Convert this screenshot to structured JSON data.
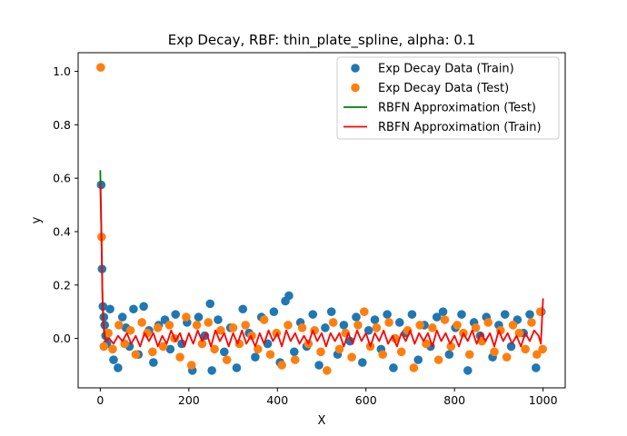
{
  "chart_data": {
    "type": "scatter",
    "title": "Exp Decay, RBF: thin_plate_spline, alpha: 0.1",
    "xlabel": "X",
    "ylabel": "y",
    "xlim": [
      -50,
      1050
    ],
    "ylim": [
      -0.185,
      1.07
    ],
    "xticks": [
      0,
      200,
      400,
      600,
      800,
      1000
    ],
    "yticks": [
      0.0,
      0.2,
      0.4,
      0.6,
      0.8,
      1.0
    ],
    "xtick_labels": [
      "0",
      "200",
      "400",
      "600",
      "800",
      "1000"
    ],
    "ytick_labels": [
      "0.0",
      "0.2",
      "0.4",
      "0.6",
      "0.8",
      "1.0"
    ],
    "legend_position": "top-right",
    "series": [
      {
        "name": "Exp Decay Data (Train)",
        "kind": "scatter",
        "color": "#1f77b4",
        "points": [
          [
            2,
            0.575
          ],
          [
            4,
            0.26
          ],
          [
            6,
            0.12
          ],
          [
            8,
            0.08
          ],
          [
            10,
            0.05
          ],
          [
            12,
            0.01
          ],
          [
            15,
            -0.02
          ],
          [
            22,
            0.11
          ],
          [
            30,
            -0.08
          ],
          [
            40,
            -0.11
          ],
          [
            50,
            0.08
          ],
          [
            58,
            0.04
          ],
          [
            66,
            -0.03
          ],
          [
            75,
            0.11
          ],
          [
            86,
            -0.06
          ],
          [
            98,
            0.12
          ],
          [
            110,
            0.03
          ],
          [
            120,
            -0.09
          ],
          [
            132,
            0.05
          ],
          [
            146,
            0.07
          ],
          [
            158,
            -0.04
          ],
          [
            170,
            0.09
          ],
          [
            184,
            -0.02
          ],
          [
            196,
            0.06
          ],
          [
            208,
            -0.12
          ],
          [
            222,
            0.08
          ],
          [
            236,
            0.01
          ],
          [
            248,
            0.13
          ],
          [
            252,
            -0.12
          ],
          [
            266,
            0.07
          ],
          [
            280,
            -0.05
          ],
          [
            294,
            0.04
          ],
          [
            308,
            -0.11
          ],
          [
            322,
            0.11
          ],
          [
            336,
            0.02
          ],
          [
            350,
            -0.07
          ],
          [
            364,
            0.08
          ],
          [
            378,
            -0.02
          ],
          [
            392,
            0.1
          ],
          [
            406,
            -0.09
          ],
          [
            418,
            0.14
          ],
          [
            426,
            0.16
          ],
          [
            438,
            -0.05
          ],
          [
            452,
            0.06
          ],
          [
            466,
            -0.03
          ],
          [
            480,
            0.09
          ],
          [
            494,
            -0.1
          ],
          [
            508,
            0.04
          ],
          [
            522,
            0.1
          ],
          [
            536,
            -0.06
          ],
          [
            550,
            0.05
          ],
          [
            564,
            -0.01
          ],
          [
            578,
            0.08
          ],
          [
            592,
            -0.09
          ],
          [
            606,
            0.03
          ],
          [
            620,
            0.07
          ],
          [
            634,
            -0.04
          ],
          [
            648,
            0.09
          ],
          [
            662,
            -0.11
          ],
          [
            676,
            0.06
          ],
          [
            690,
            0.02
          ],
          [
            704,
            0.09
          ],
          [
            718,
            -0.08
          ],
          [
            732,
            0.05
          ],
          [
            746,
            -0.03
          ],
          [
            760,
            0.08
          ],
          [
            774,
            0.1
          ],
          [
            788,
            -0.06
          ],
          [
            802,
            0.04
          ],
          [
            816,
            0.09
          ],
          [
            830,
            -0.12
          ],
          [
            844,
            0.06
          ],
          [
            858,
            0.01
          ],
          [
            872,
            0.08
          ],
          [
            886,
            -0.07
          ],
          [
            900,
            0.05
          ],
          [
            914,
            0.09
          ],
          [
            928,
            -0.03
          ],
          [
            942,
            0.07
          ],
          [
            956,
            0.02
          ],
          [
            970,
            0.09
          ],
          [
            984,
            -0.11
          ],
          [
            996,
            0.1
          ]
        ]
      },
      {
        "name": "Exp Decay Data (Test)",
        "kind": "scatter",
        "color": "#ff7f0e",
        "points": [
          [
            1,
            1.015
          ],
          [
            3,
            0.38
          ],
          [
            8,
            -0.03
          ],
          [
            18,
            0.02
          ],
          [
            28,
            -0.04
          ],
          [
            42,
            0.05
          ],
          [
            55,
            -0.02
          ],
          [
            68,
            0.03
          ],
          [
            80,
            -0.06
          ],
          [
            94,
            0.06
          ],
          [
            106,
            0.02
          ],
          [
            118,
            -0.05
          ],
          [
            130,
            0.04
          ],
          [
            142,
            -0.03
          ],
          [
            156,
            0.05
          ],
          [
            168,
            0.0
          ],
          [
            180,
            -0.07
          ],
          [
            194,
            0.08
          ],
          [
            206,
            -0.1
          ],
          [
            218,
            0.05
          ],
          [
            230,
            -0.02
          ],
          [
            244,
            0.06
          ],
          [
            258,
            -0.04
          ],
          [
            272,
            0.03
          ],
          [
            286,
            -0.08
          ],
          [
            300,
            0.04
          ],
          [
            314,
            -0.02
          ],
          [
            328,
            0.05
          ],
          [
            342,
            0.01
          ],
          [
            356,
            -0.04
          ],
          [
            370,
            0.07
          ],
          [
            384,
            -0.06
          ],
          [
            398,
            0.02
          ],
          [
            410,
            -0.1
          ],
          [
            424,
            0.05
          ],
          [
            440,
            -0.08
          ],
          [
            456,
            0.04
          ],
          [
            470,
            -0.02
          ],
          [
            484,
            0.03
          ],
          [
            498,
            -0.05
          ],
          [
            512,
            -0.12
          ],
          [
            526,
            0.06
          ],
          [
            540,
            -0.04
          ],
          [
            554,
            0.02
          ],
          [
            568,
            -0.07
          ],
          [
            582,
            0.05
          ],
          [
            596,
            0.1
          ],
          [
            610,
            -0.03
          ],
          [
            624,
            0.04
          ],
          [
            638,
            -0.06
          ],
          [
            652,
            0.06
          ],
          [
            666,
            0.0
          ],
          [
            680,
            -0.05
          ],
          [
            694,
            0.03
          ],
          [
            708,
            -0.11
          ],
          [
            722,
            0.05
          ],
          [
            736,
            -0.02
          ],
          [
            750,
            0.04
          ],
          [
            764,
            -0.08
          ],
          [
            778,
            0.07
          ],
          [
            792,
            -0.03
          ],
          [
            806,
            0.05
          ],
          [
            820,
            0.02
          ],
          [
            834,
            -0.06
          ],
          [
            848,
            0.04
          ],
          [
            862,
            -0.01
          ],
          [
            876,
            0.06
          ],
          [
            890,
            -0.05
          ],
          [
            904,
            0.03
          ],
          [
            918,
            -0.07
          ],
          [
            932,
            0.05
          ],
          [
            946,
            0.02
          ],
          [
            960,
            -0.04
          ],
          [
            974,
            0.06
          ],
          [
            986,
            -0.06
          ],
          [
            994,
            0.1
          ],
          [
            999,
            -0.04
          ]
        ]
      },
      {
        "name": "RBFN Approximation (Test)",
        "kind": "line",
        "color": "#008000",
        "points": [
          [
            0,
            0.63
          ],
          [
            2,
            0.45
          ],
          [
            4,
            0.24
          ],
          [
            6,
            0.08
          ],
          [
            9,
            0.01
          ],
          [
            14,
            -0.01
          ]
        ]
      },
      {
        "name": "RBFN Approximation (Train)",
        "kind": "line",
        "color": "#ff0000",
        "points": [
          [
            0,
            0.58
          ],
          [
            3,
            0.35
          ],
          [
            5,
            0.15
          ],
          [
            8,
            0.04
          ],
          [
            12,
            -0.01
          ],
          [
            20,
            0.0
          ],
          [
            30,
            -0.02
          ],
          [
            40,
            0.01
          ],
          [
            50,
            -0.01
          ],
          [
            60,
            0.02
          ],
          [
            70,
            -0.02
          ],
          [
            80,
            0.01
          ],
          [
            90,
            -0.03
          ],
          [
            100,
            0.02
          ],
          [
            110,
            -0.01
          ],
          [
            120,
            0.02
          ],
          [
            130,
            -0.03
          ],
          [
            140,
            0.01
          ],
          [
            150,
            -0.02
          ],
          [
            160,
            0.03
          ],
          [
            170,
            -0.01
          ],
          [
            180,
            0.02
          ],
          [
            190,
            -0.03
          ],
          [
            200,
            0.02
          ],
          [
            210,
            -0.02
          ],
          [
            220,
            0.03
          ],
          [
            230,
            -0.01
          ],
          [
            240,
            0.02
          ],
          [
            250,
            -0.03
          ],
          [
            260,
            0.03
          ],
          [
            270,
            -0.01
          ],
          [
            280,
            0.02
          ],
          [
            290,
            -0.03
          ],
          [
            300,
            0.02
          ],
          [
            310,
            -0.02
          ],
          [
            320,
            0.03
          ],
          [
            330,
            -0.02
          ],
          [
            340,
            0.01
          ],
          [
            350,
            -0.03
          ],
          [
            360,
            0.02
          ],
          [
            370,
            -0.02
          ],
          [
            380,
            0.03
          ],
          [
            390,
            -0.01
          ],
          [
            400,
            0.02
          ],
          [
            410,
            -0.03
          ],
          [
            420,
            0.03
          ],
          [
            430,
            -0.01
          ],
          [
            440,
            0.02
          ],
          [
            450,
            -0.02
          ],
          [
            460,
            0.01
          ],
          [
            470,
            -0.02
          ],
          [
            480,
            0.03
          ],
          [
            490,
            -0.01
          ],
          [
            500,
            0.02
          ],
          [
            510,
            -0.03
          ],
          [
            520,
            0.02
          ],
          [
            530,
            -0.01
          ],
          [
            540,
            0.02
          ],
          [
            550,
            -0.03
          ],
          [
            560,
            0.02
          ],
          [
            570,
            -0.02
          ],
          [
            580,
            0.03
          ],
          [
            590,
            -0.01
          ],
          [
            600,
            0.02
          ],
          [
            610,
            -0.03
          ],
          [
            620,
            0.02
          ],
          [
            630,
            -0.01
          ],
          [
            640,
            0.03
          ],
          [
            650,
            -0.02
          ],
          [
            660,
            0.01
          ],
          [
            670,
            -0.03
          ],
          [
            680,
            0.02
          ],
          [
            690,
            -0.01
          ],
          [
            700,
            0.03
          ],
          [
            710,
            -0.02
          ],
          [
            720,
            0.02
          ],
          [
            730,
            -0.01
          ],
          [
            740,
            0.02
          ],
          [
            750,
            -0.03
          ],
          [
            760,
            0.03
          ],
          [
            770,
            -0.01
          ],
          [
            780,
            0.02
          ],
          [
            790,
            -0.02
          ],
          [
            800,
            0.01
          ],
          [
            810,
            -0.03
          ],
          [
            820,
            0.02
          ],
          [
            830,
            -0.01
          ],
          [
            840,
            0.03
          ],
          [
            850,
            -0.02
          ],
          [
            860,
            0.02
          ],
          [
            870,
            -0.01
          ],
          [
            880,
            0.02
          ],
          [
            890,
            -0.03
          ],
          [
            900,
            0.03
          ],
          [
            910,
            -0.01
          ],
          [
            920,
            0.02
          ],
          [
            930,
            -0.02
          ],
          [
            940,
            0.01
          ],
          [
            950,
            -0.03
          ],
          [
            960,
            0.02
          ],
          [
            970,
            -0.01
          ],
          [
            980,
            0.03
          ],
          [
            990,
            0.01
          ],
          [
            995,
            -0.02
          ],
          [
            1000,
            0.15
          ]
        ]
      }
    ]
  }
}
